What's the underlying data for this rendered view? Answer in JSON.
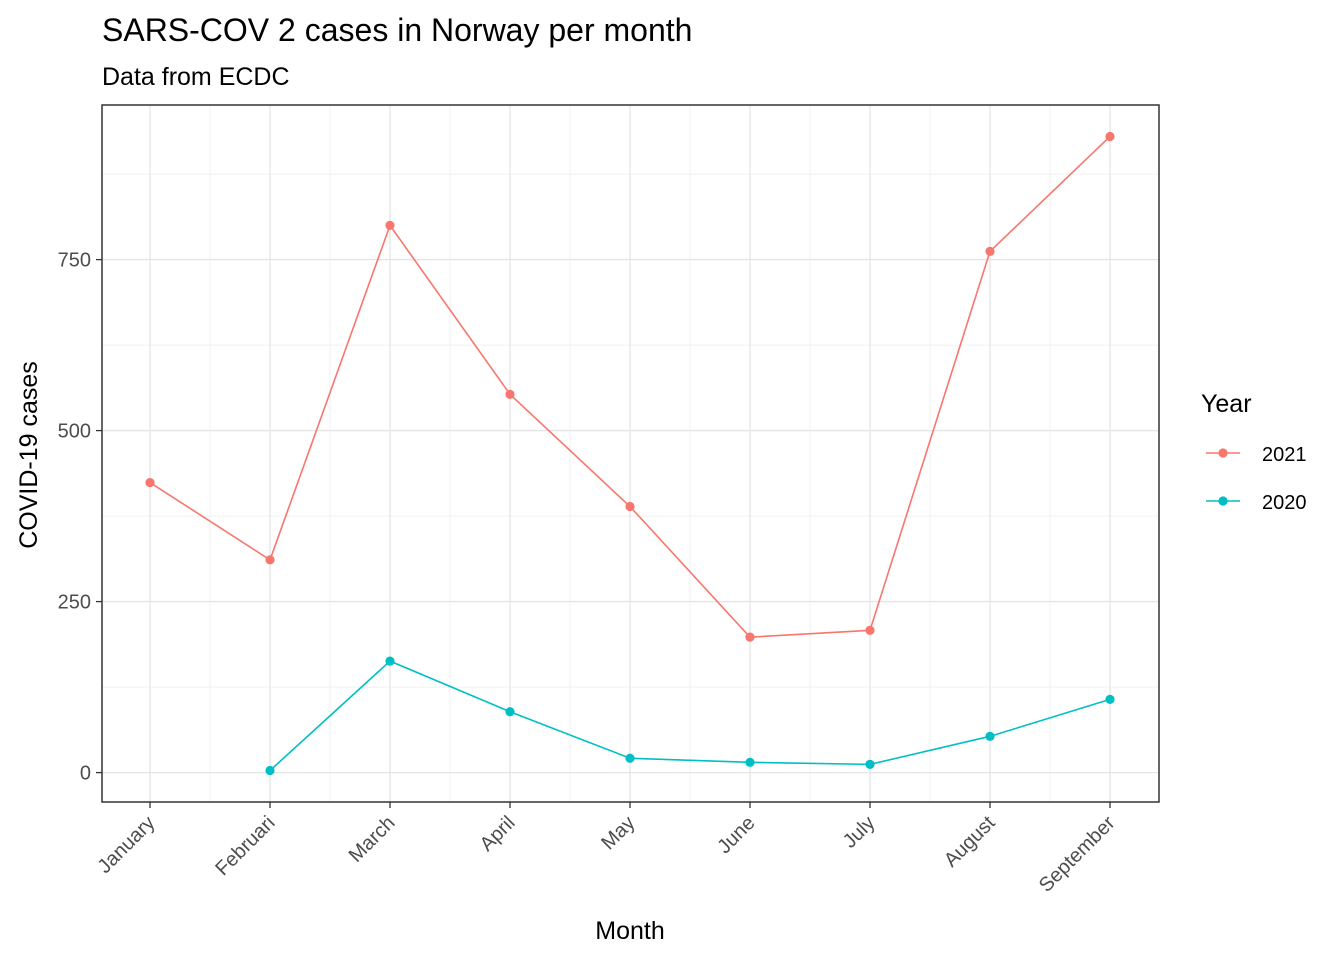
{
  "chart_data": {
    "type": "line",
    "title": "SARS-COV 2 cases in Norway per month",
    "subtitle": "Data from ECDC",
    "xlabel": "Month",
    "ylabel": "COVID-19 cases",
    "categories": [
      "January",
      "Februari",
      "March",
      "April",
      "May",
      "June",
      "July",
      "August",
      "September"
    ],
    "yticks": [
      0,
      250,
      500,
      750
    ],
    "ylim": [
      -43,
      976
    ],
    "grid": true,
    "legend": {
      "title": "Year",
      "position": "right"
    },
    "series": [
      {
        "name": "2021",
        "color": "#F8766D",
        "values": [
          424,
          311,
          800,
          553,
          389,
          198,
          208,
          762,
          930
        ]
      },
      {
        "name": "2020",
        "color": "#00BFC4",
        "values": [
          null,
          3,
          163,
          89,
          21,
          15,
          12,
          53,
          107
        ]
      }
    ]
  }
}
